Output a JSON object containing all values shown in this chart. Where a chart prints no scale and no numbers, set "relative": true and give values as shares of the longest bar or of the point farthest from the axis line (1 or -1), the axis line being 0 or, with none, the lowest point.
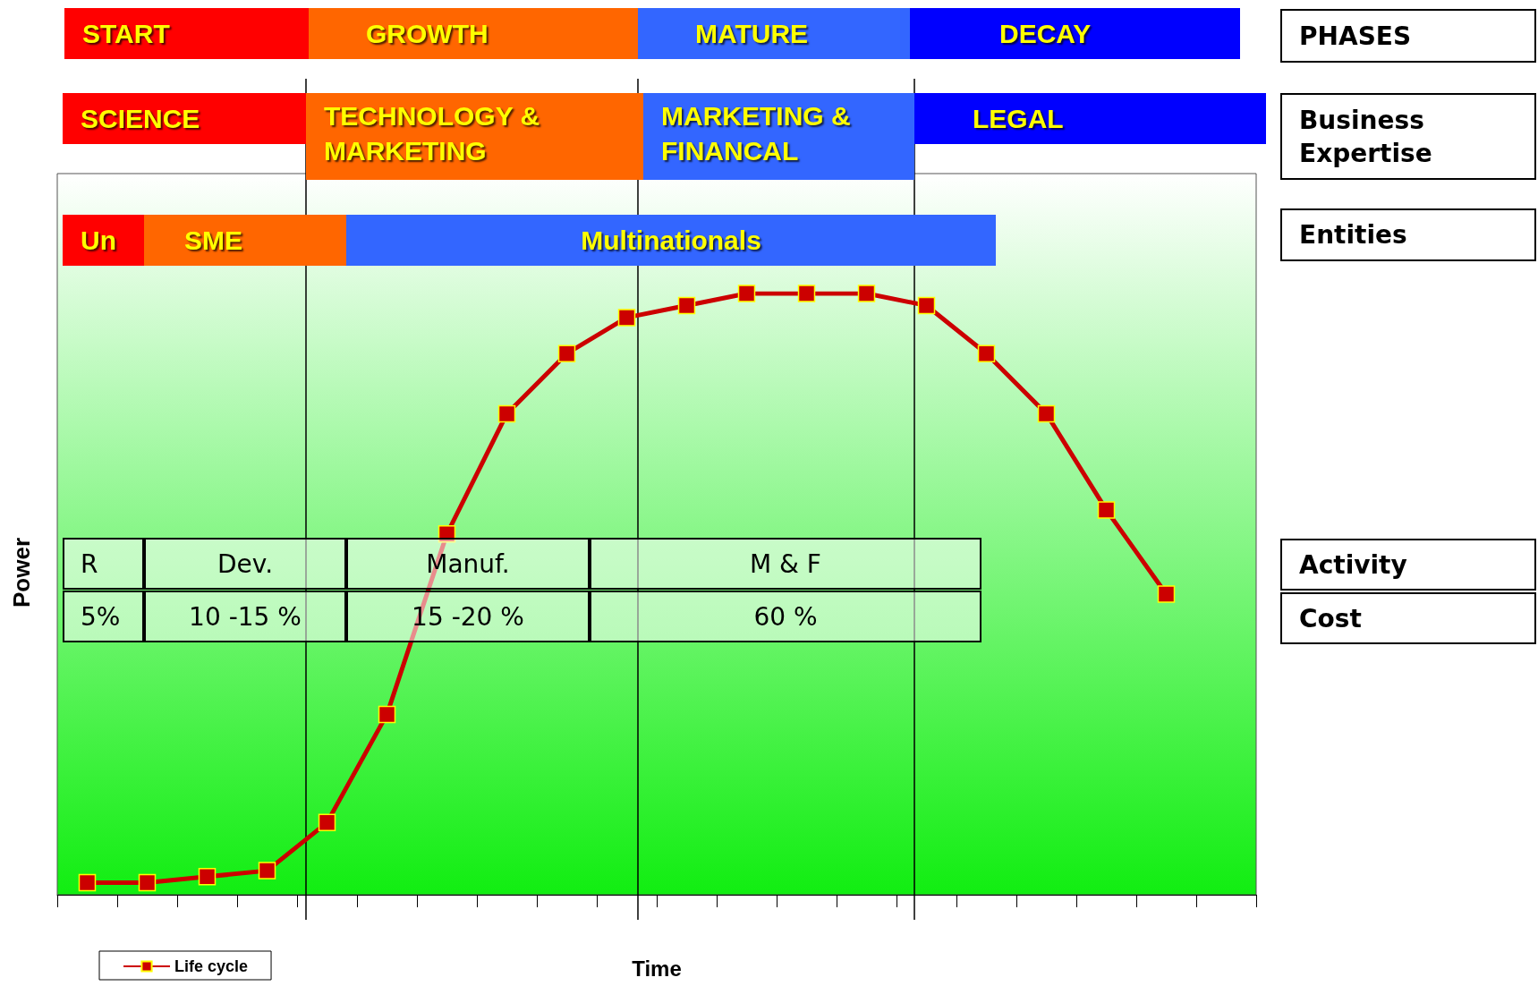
{
  "chart_data": {
    "type": "line",
    "relative": true,
    "xlabel": "Time",
    "ylabel": "Power",
    "categories": [
      null,
      null,
      null,
      null,
      null,
      null,
      null,
      null,
      null,
      null,
      null,
      null,
      null,
      null,
      null,
      null,
      null,
      null,
      null,
      null
    ],
    "series": [
      {
        "name": "Life cycle",
        "color": "#cc0000",
        "values": [
          0.02,
          0.02,
          0.03,
          0.04,
          0.12,
          0.3,
          0.6,
          0.8,
          0.9,
          0.96,
          0.98,
          1,
          1,
          1,
          0.98,
          0.9,
          0.8,
          0.64,
          0.5,
          null
        ]
      }
    ],
    "marker": "square",
    "legend": "bottom left",
    "annotations": [
      "START",
      "GROWTH",
      "MATURE",
      "DECAY",
      "SCIENCE",
      "TECHNOLOGY &\nMARKETING",
      "MARKETING &\nFINANCAL",
      "LEGAL",
      "Un",
      "SME",
      "Multinationals",
      "PHASES",
      "Business\nExpertise",
      "Entities",
      "Activity",
      "Cost",
      "R",
      "Dev.",
      "Manuf.",
      "M & F",
      "5%",
      "10 -15 %",
      "15 -20 %",
      "60 %"
    ]
  }
}
